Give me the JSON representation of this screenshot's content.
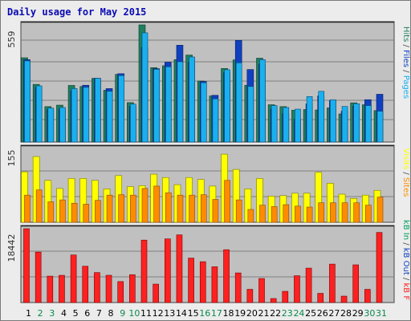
{
  "title": "Daily usage for May 2015",
  "colors": {
    "hits": "#1f7f5f",
    "files": "#1ab0f0",
    "pages": "#1ab8e8",
    "visits": "#ffff00",
    "sites": "#ff8c00",
    "kbin": "#00a060",
    "kbout": "#1040c0",
    "kbf": "#ff2020",
    "weekend": "#0a8a4a",
    "weekday": "#000000"
  },
  "days": [
    "1",
    "2",
    "3",
    "4",
    "5",
    "6",
    "7",
    "8",
    "9",
    "10",
    "11",
    "12",
    "13",
    "14",
    "15",
    "16",
    "17",
    "18",
    "19",
    "20",
    "21",
    "22",
    "23",
    "24",
    "25",
    "26",
    "27",
    "28",
    "29",
    "30",
    "31"
  ],
  "weekend_days": [
    "2",
    "3",
    "9",
    "10",
    "16",
    "17",
    "23",
    "24",
    "30",
    "31"
  ],
  "side_labels": {
    "top": [
      {
        "text": "Hits",
        "key": "hits"
      },
      {
        "text": "/",
        "key": "sep"
      },
      {
        "text": "Files",
        "key": "files"
      },
      {
        "text": "/",
        "key": "sep"
      },
      {
        "text": "Pages",
        "key": "pages"
      }
    ],
    "mid": [
      {
        "text": "Visits",
        "key": "visits"
      },
      {
        "text": "/",
        "key": "sep"
      },
      {
        "text": "Sites",
        "key": "sites"
      }
    ],
    "bot": [
      {
        "text": "kB In",
        "key": "kbin_label"
      },
      {
        "text": "/",
        "key": "sep"
      },
      {
        "text": "kB Out",
        "key": "kbout"
      },
      {
        "text": "/",
        "key": "sep"
      },
      {
        "text": "kB F",
        "key": "kbf"
      }
    ]
  },
  "chart_data": [
    {
      "type": "bar",
      "panel": "top",
      "ylabel_max": "559",
      "ylim": [
        0,
        559
      ],
      "categories": [
        "1",
        "2",
        "3",
        "4",
        "5",
        "6",
        "7",
        "8",
        "9",
        "10",
        "11",
        "12",
        "13",
        "14",
        "15",
        "16",
        "17",
        "18",
        "19",
        "20",
        "21",
        "22",
        "23",
        "24",
        "25",
        "26",
        "27",
        "28",
        "29",
        "30",
        "31"
      ],
      "series": [
        {
          "name": "Hits",
          "values": [
            402,
            275,
            169,
            176,
            270,
            265,
            304,
            247,
            323,
            188,
            559,
            355,
            364,
            393,
            415,
            291,
            220,
            351,
            392,
            271,
            400,
            178,
            169,
            152,
            155,
            153,
            163,
            134,
            187,
            178,
            150
          ]
        },
        {
          "name": "Files",
          "values": [
            393,
            261,
            155,
            159,
            244,
            271,
            304,
            255,
            326,
            170,
            450,
            350,
            381,
            462,
            380,
            289,
            223,
            331,
            485,
            346,
            371,
            156,
            135,
            109,
            182,
            220,
            198,
            147,
            171,
            202,
            228
          ]
        },
        {
          "name": "Pages",
          "values": [
            387,
            268,
            162,
            165,
            255,
            261,
            304,
            242,
            317,
            181,
            521,
            347,
            359,
            383,
            406,
            283,
            206,
            345,
            378,
            265,
            393,
            174,
            165,
            157,
            217,
            242,
            202,
            170,
            183,
            174,
            147
          ]
        }
      ]
    },
    {
      "type": "bar",
      "panel": "middle",
      "ylabel_max": "155",
      "ylim": [
        0,
        155
      ],
      "categories": [
        "1",
        "2",
        "3",
        "4",
        "5",
        "6",
        "7",
        "8",
        "9",
        "10",
        "11",
        "12",
        "13",
        "14",
        "15",
        "16",
        "17",
        "18",
        "19",
        "20",
        "21",
        "22",
        "23",
        "24",
        "25",
        "26",
        "27",
        "28",
        "29",
        "30",
        "31"
      ],
      "series": [
        {
          "name": "Visits",
          "values": [
            106,
            138,
            88,
            71,
            92,
            92,
            88,
            70,
            98,
            75,
            77,
            101,
            94,
            79,
            94,
            90,
            76,
            143,
            111,
            70,
            92,
            55,
            56,
            61,
            61,
            105,
            82,
            59,
            50,
            57,
            67
          ]
        },
        {
          "name": "Sites",
          "values": [
            57,
            68,
            43,
            47,
            40,
            38,
            46,
            57,
            58,
            57,
            71,
            76,
            62,
            57,
            57,
            58,
            48,
            88,
            47,
            27,
            36,
            33,
            37,
            34,
            32,
            41,
            41,
            41,
            41,
            36,
            53
          ]
        }
      ]
    },
    {
      "type": "bar",
      "panel": "bottom",
      "ylabel_max": "18442",
      "ylim": [
        0,
        18442
      ],
      "categories": [
        "1",
        "2",
        "3",
        "4",
        "5",
        "6",
        "7",
        "8",
        "9",
        "10",
        "11",
        "12",
        "13",
        "14",
        "15",
        "16",
        "17",
        "18",
        "19",
        "20",
        "21",
        "22",
        "23",
        "24",
        "25",
        "26",
        "27",
        "28",
        "29",
        "30",
        "31"
      ],
      "series": [
        {
          "name": "kB F",
          "values": [
            18442,
            12606,
            6600,
            6800,
            11881,
            9064,
            7483,
            6816,
            5235,
            6948,
            15600,
            4600,
            15900,
            16900,
            11100,
            10200,
            8932,
            13200,
            7400,
            3300,
            6000,
            1000,
            2800,
            6700,
            8600,
            2300,
            9600,
            1600,
            9419,
            3300,
            17500
          ]
        }
      ]
    }
  ]
}
